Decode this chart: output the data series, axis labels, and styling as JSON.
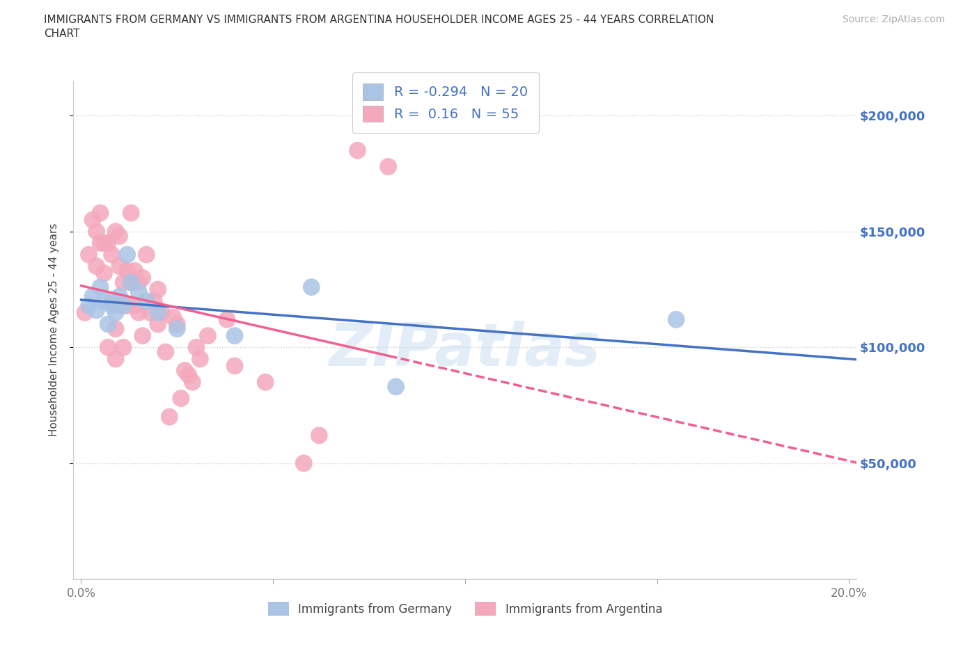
{
  "title_line1": "IMMIGRANTS FROM GERMANY VS IMMIGRANTS FROM ARGENTINA HOUSEHOLDER INCOME AGES 25 - 44 YEARS CORRELATION",
  "title_line2": "CHART",
  "source_text": "Source: ZipAtlas.com",
  "ylabel": "Householder Income Ages 25 - 44 years",
  "xlim": [
    -0.002,
    0.202
  ],
  "ylim": [
    0,
    215000
  ],
  "xtick_positions": [
    0.0,
    0.05,
    0.1,
    0.15,
    0.2
  ],
  "xticklabels": [
    "0.0%",
    "",
    "",
    "",
    "20.0%"
  ],
  "ytick_positions": [
    50000,
    100000,
    150000,
    200000
  ],
  "ytick_labels": [
    "$50,000",
    "$100,000",
    "$150,000",
    "$200,000"
  ],
  "germany_color": "#aac4e4",
  "argentina_color": "#f4a8bc",
  "germany_line_color": "#4472c4",
  "argentina_line_color": "#f06090",
  "R_germany": -0.294,
  "N_germany": 20,
  "R_argentina": 0.16,
  "N_argentina": 55,
  "germany_x": [
    0.002,
    0.003,
    0.004,
    0.005,
    0.006,
    0.007,
    0.008,
    0.009,
    0.01,
    0.011,
    0.012,
    0.013,
    0.015,
    0.017,
    0.02,
    0.025,
    0.04,
    0.06,
    0.082,
    0.155
  ],
  "germany_y": [
    118000,
    122000,
    116000,
    126000,
    120000,
    110000,
    118000,
    115000,
    122000,
    118000,
    140000,
    128000,
    124000,
    120000,
    115000,
    108000,
    105000,
    126000,
    83000,
    112000
  ],
  "argentina_x": [
    0.001,
    0.002,
    0.003,
    0.004,
    0.004,
    0.005,
    0.005,
    0.006,
    0.006,
    0.007,
    0.007,
    0.008,
    0.008,
    0.009,
    0.009,
    0.009,
    0.01,
    0.01,
    0.01,
    0.011,
    0.011,
    0.012,
    0.012,
    0.013,
    0.013,
    0.014,
    0.014,
    0.015,
    0.015,
    0.016,
    0.016,
    0.017,
    0.018,
    0.019,
    0.02,
    0.02,
    0.021,
    0.022,
    0.023,
    0.024,
    0.025,
    0.026,
    0.027,
    0.028,
    0.029,
    0.03,
    0.031,
    0.033,
    0.038,
    0.04,
    0.048,
    0.058,
    0.062,
    0.072,
    0.08
  ],
  "argentina_y": [
    115000,
    140000,
    155000,
    150000,
    135000,
    158000,
    145000,
    145000,
    132000,
    145000,
    100000,
    140000,
    120000,
    150000,
    108000,
    95000,
    148000,
    135000,
    118000,
    128000,
    100000,
    133000,
    118000,
    158000,
    128000,
    133000,
    118000,
    128000,
    115000,
    130000,
    105000,
    140000,
    115000,
    120000,
    125000,
    110000,
    115000,
    98000,
    70000,
    113000,
    110000,
    78000,
    90000,
    88000,
    85000,
    100000,
    95000,
    105000,
    112000,
    92000,
    85000,
    50000,
    62000,
    185000,
    178000
  ],
  "watermark": "ZIPatlas",
  "background_color": "#ffffff",
  "grid_color": "#d0d0d0",
  "legend_label_germany": "Immigrants from Germany",
  "legend_label_argentina": "Immigrants from Argentina"
}
